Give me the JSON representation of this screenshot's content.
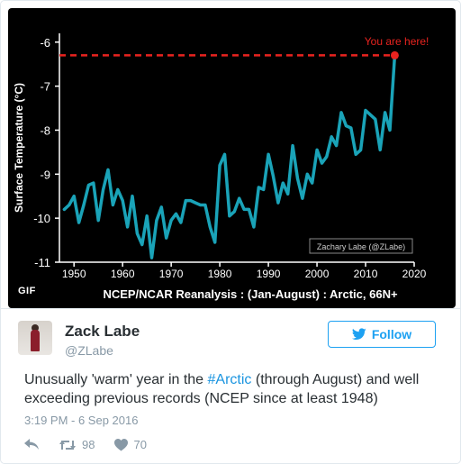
{
  "chart_data": {
    "type": "line",
    "title": "NCEP/NCAR Reanalysis : (Jan-August) : Arctic, 66N+",
    "ylabel": "Surface Temperature (°C)",
    "xlabel": "",
    "xlim": [
      1947,
      2020
    ],
    "ylim": [
      -11,
      -5.8
    ],
    "xticks": [
      1950,
      1960,
      1970,
      1980,
      1990,
      2000,
      2010,
      2020
    ],
    "yticks": [
      -6,
      -7,
      -8,
      -9,
      -10,
      -11
    ],
    "x": [
      1948,
      1949,
      1950,
      1951,
      1952,
      1953,
      1954,
      1955,
      1956,
      1957,
      1958,
      1959,
      1960,
      1961,
      1962,
      1963,
      1964,
      1965,
      1966,
      1967,
      1968,
      1969,
      1970,
      1971,
      1972,
      1973,
      1974,
      1975,
      1976,
      1977,
      1978,
      1979,
      1980,
      1981,
      1982,
      1983,
      1984,
      1985,
      1986,
      1987,
      1988,
      1989,
      1990,
      1991,
      1992,
      1993,
      1994,
      1995,
      1996,
      1997,
      1998,
      1999,
      2000,
      2001,
      2002,
      2003,
      2004,
      2005,
      2006,
      2007,
      2008,
      2009,
      2010,
      2011,
      2012,
      2013,
      2014,
      2015,
      2016
    ],
    "values": [
      -9.8,
      -9.7,
      -9.5,
      -10.1,
      -9.7,
      -9.25,
      -9.2,
      -10.05,
      -9.35,
      -8.9,
      -9.7,
      -9.35,
      -9.6,
      -10.2,
      -9.5,
      -10.35,
      -10.6,
      -9.95,
      -10.9,
      -10.05,
      -9.75,
      -10.45,
      -10.05,
      -9.9,
      -10.1,
      -9.6,
      -9.6,
      -9.65,
      -9.7,
      -9.7,
      -10.2,
      -10.55,
      -8.8,
      -8.55,
      -9.95,
      -9.85,
      -9.55,
      -9.8,
      -9.8,
      -10.2,
      -9.3,
      -9.35,
      -8.55,
      -9.05,
      -9.65,
      -9.2,
      -9.45,
      -8.35,
      -9.1,
      -9.55,
      -9.0,
      -9.2,
      -8.45,
      -8.75,
      -8.6,
      -8.15,
      -8.35,
      -7.6,
      -7.9,
      -7.95,
      -8.55,
      -8.45,
      -7.55,
      -7.65,
      -7.75,
      -8.45,
      -7.6,
      -8.0,
      -6.3
    ],
    "record_line_y": -6.3,
    "annotation": "You are here!",
    "credit": "Zachary Labe (@ZLabe)",
    "line_color": "#1aa3b8",
    "annotation_color": "#e8231f",
    "grid": false
  },
  "media": {
    "badge": "GIF"
  },
  "tweet": {
    "name": "Zack Labe",
    "handle": "@ZLabe",
    "follow_label": "Follow",
    "text_before": "Unusually 'warm' year in the ",
    "hashtag": "#Arctic",
    "text_after": " (through August) and well exceeding previous records (NCEP since at least 1948)",
    "timestamp": "3:19 PM - 6 Sep 2016",
    "retweets": "98",
    "likes": "70"
  },
  "icons": [
    "reply-icon",
    "retweet-icon",
    "heart-icon",
    "twitter-bird-icon"
  ],
  "colors": {
    "accent": "#1da1f2",
    "hashtag": "#1b95e0",
    "muted": "#8899a6"
  }
}
